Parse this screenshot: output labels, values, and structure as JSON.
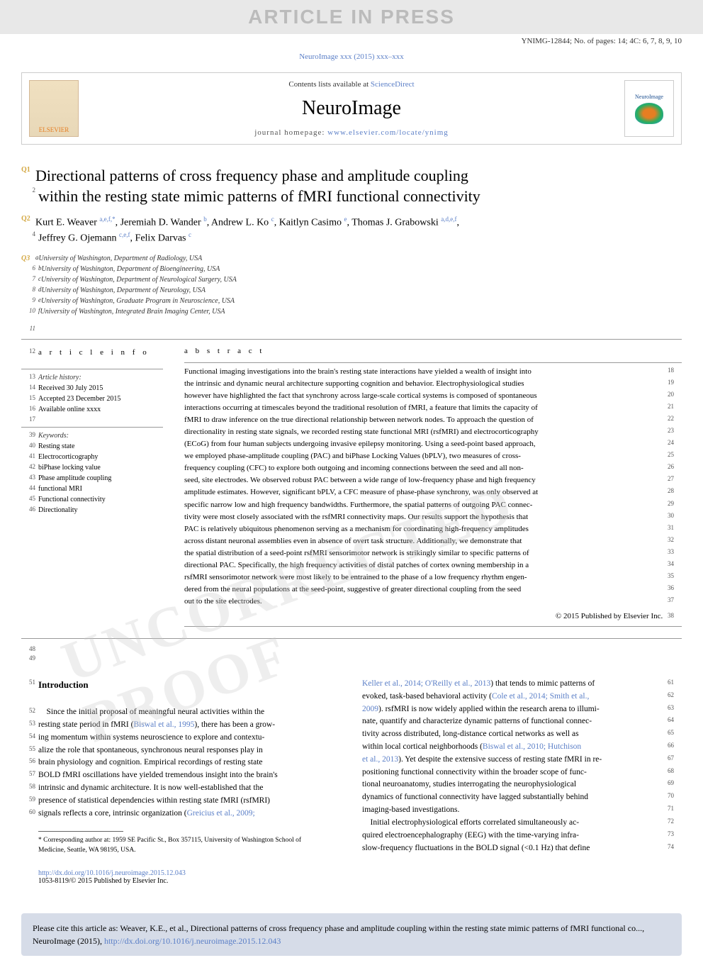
{
  "banner": {
    "text": "ARTICLE IN PRESS"
  },
  "header_meta": "YNIMG-12844; No. of pages: 14; 4C: 6, 7, 8, 9, 10",
  "journal_link_text": "NeuroImage xxx (2015) xxx–xxx",
  "journal_box": {
    "contents_text": "Contents lists available at ",
    "sd_text": "ScienceDirect",
    "journal_name": "NeuroImage",
    "homepage_label": "journal homepage: ",
    "homepage_url": "www.elsevier.com/locate/ynimg",
    "elsevier_label": "ELSEVIER",
    "neuroimage_label": "NeuroImage"
  },
  "title": {
    "q1": "Q1",
    "line1": "Directional patterns of cross frequency phase and amplitude coupling",
    "num2": "2",
    "line2": "within the resting state mimic patterns of fMRI functional connectivity"
  },
  "authors": {
    "q2": "Q2",
    "num4": "4",
    "text1": "Kurt E. Weaver ",
    "sup1": "a,e,f,",
    "star": "*",
    "text2": ", Jeremiah D. Wander ",
    "sup2": "b",
    "text3": ", Andrew L. Ko ",
    "sup3": "c",
    "text4": ", Kaitlyn Casimo ",
    "sup4": "e",
    "text5": ", Thomas J. Grabowski ",
    "sup5": "a,d,e,f",
    "text6": ",",
    "text7": "Jeffrey G. Ojemann ",
    "sup7": "c,e,f",
    "text8": ", Felix Darvas ",
    "sup8": "c"
  },
  "affiliations": [
    {
      "q": "Q3",
      "num": "",
      "sup": "a",
      "text": " University of Washington, Department of Radiology, USA"
    },
    {
      "q": "",
      "num": "6",
      "sup": "b",
      "text": " University of Washington, Department of Bioengineering, USA"
    },
    {
      "q": "",
      "num": "7",
      "sup": "c",
      "text": " University of Washington, Department of Neurological Surgery, USA"
    },
    {
      "q": "",
      "num": "8",
      "sup": "d",
      "text": " University of Washington, Department of Neurology, USA"
    },
    {
      "q": "",
      "num": "9",
      "sup": "e",
      "text": " University of Washington, Graduate Program in Neuroscience, USA"
    },
    {
      "q": "",
      "num": "10",
      "sup": "f",
      "text": " University of Washington, Integrated Brain Imaging Center, USA"
    }
  ],
  "blank_num": "11",
  "article_info": {
    "heading_num": "12",
    "heading": "a r t i c l e   i n f o",
    "history_num": "13",
    "history_label": "Article history:",
    "received_num": "14",
    "received": "Received 30 July 2015",
    "accepted_num": "15",
    "accepted": "Accepted 23 December 2015",
    "online_num": "16",
    "online": "Available online xxxx",
    "blank_num": "17",
    "keywords_num": "39",
    "keywords_label": "Keywords:",
    "keywords": [
      {
        "num": "40",
        "text": "Resting state"
      },
      {
        "num": "41",
        "text": "Electrocorticography"
      },
      {
        "num": "42",
        "text": "biPhase locking value"
      },
      {
        "num": "43",
        "text": "Phase amplitude coupling"
      },
      {
        "num": "44",
        "text": "functional MRI"
      },
      {
        "num": "45",
        "text": "Functional connectivity"
      },
      {
        "num": "46",
        "text": "Directionality"
      }
    ]
  },
  "abstract": {
    "heading": "a b s t r a c t",
    "lines": [
      {
        "num": "18",
        "text": "Functional imaging investigations into the brain's resting state interactions have yielded a wealth of insight into "
      },
      {
        "num": "19",
        "text": "the intrinsic and dynamic neural architecture supporting cognition and behavior. Electrophysiological studies "
      },
      {
        "num": "20",
        "text": "however have highlighted the fact that synchrony across large-scale cortical systems is composed of spontaneous "
      },
      {
        "num": "21",
        "text": "interactions occurring at timescales beyond the traditional resolution of fMRI, a feature that limits the capacity of "
      },
      {
        "num": "22",
        "text": "fMRI to draw inference on the true directional relationship between network nodes. To approach the question of "
      },
      {
        "num": "23",
        "text": "directionality in resting state signals, we recorded resting state functional MRI (rsfMRI) and electrocorticography "
      },
      {
        "num": "24",
        "text": "(ECoG) from four human subjects undergoing invasive epilepsy monitoring. Using a seed-point based approach, "
      },
      {
        "num": "25",
        "text": "we employed phase-amplitude coupling (PAC) and biPhase Locking Values (bPLV), two measures of cross- "
      },
      {
        "num": "26",
        "text": "frequency coupling (CFC) to explore both outgoing and incoming connections between the seed and all non- "
      },
      {
        "num": "27",
        "text": "seed, site electrodes. We observed robust PAC between a wide range of low-frequency phase and high frequency "
      },
      {
        "num": "28",
        "text": "amplitude estimates. However, significant bPLV, a CFC measure of phase-phase synchrony, was only observed at "
      },
      {
        "num": "29",
        "text": "specific narrow low and high frequency bandwidths. Furthermore, the spatial patterns of outgoing PAC connec- "
      },
      {
        "num": "30",
        "text": "tivity were most closely associated with the rsfMRI connectivity maps. Our results support the hypothesis that "
      },
      {
        "num": "31",
        "text": "PAC is relatively ubiquitous phenomenon serving as a mechanism for coordinating high-frequency amplitudes "
      },
      {
        "num": "32",
        "text": "across distant neuronal assemblies even in absence of overt task structure. Additionally, we demonstrate that "
      },
      {
        "num": "33",
        "text": "the spatial distribution of a seed-point rsfMRI sensorimotor network is strikingly similar to specific patterns of "
      },
      {
        "num": "34",
        "text": "directional PAC. Specifically, the high frequency activities of distal patches of cortex owning membership in a "
      },
      {
        "num": "35",
        "text": "rsfMRI sensorimotor network were most likely to be entrained to the phase of a low frequency rhythm engen- "
      },
      {
        "num": "36",
        "text": "dered from the neural populations at the seed-point, suggestive of greater directional coupling from the seed "
      },
      {
        "num": "37",
        "text": "out to the site electrodes."
      }
    ],
    "copyright_num": "38",
    "copyright": "© 2015 Published by Elsevier Inc."
  },
  "post_nums": {
    "n48": "48",
    "n49": "49"
  },
  "intro": {
    "heading_num": "51",
    "heading": "Introduction",
    "left_lines": [
      {
        "num": "52",
        "text": "Since the initial proposal of meaningful neural activities within the",
        "indent": true
      },
      {
        "num": "53",
        "text": "resting state period in fMRI (",
        "ref": "Biswal et al., 1995",
        "after": "), there has been a grow-"
      },
      {
        "num": "54",
        "text": "ing momentum within systems neuroscience to explore and contextu-"
      },
      {
        "num": "55",
        "text": "alize the role that spontaneous, synchronous neural responses play in"
      },
      {
        "num": "56",
        "text": "brain physiology and cognition. Empirical recordings of resting state"
      },
      {
        "num": "57",
        "text": "BOLD fMRI oscillations have yielded tremendous insight into the brain's"
      },
      {
        "num": "58",
        "text": "intrinsic and dynamic architecture. It is now well-established that the"
      },
      {
        "num": "59",
        "text": "presence of statistical dependencies within resting state fMRI (rsfMRI)"
      },
      {
        "num": "60",
        "text": "signals reflects a core, intrinsic organization (",
        "ref": "Greicius et al., 2009;",
        "after": ""
      }
    ],
    "right_lines": [
      {
        "num": "61",
        "ref": "Keller et al., 2014; O'Reilly et al., 2013",
        "text": ") that tends to mimic patterns of"
      },
      {
        "num": "62",
        "text": "evoked, task-based behavioral activity (",
        "ref": "Cole et al., 2014; Smith et al.,",
        "after": ""
      },
      {
        "num": "63",
        "ref": "2009",
        "text": "). rsfMRI is now widely applied within the research arena to illumi-"
      },
      {
        "num": "64",
        "text": "nate, quantify and characterize dynamic patterns of functional connec-"
      },
      {
        "num": "65",
        "text": "tivity across distributed, long-distance cortical networks as well as"
      },
      {
        "num": "66",
        "text": "within local cortical neighborhoods (",
        "ref": "Biswal et al., 2010; Hutchison",
        "after": ""
      },
      {
        "num": "67",
        "ref": "et al., 2013",
        "text": "). Yet despite the extensive success of resting state fMRI in re-"
      },
      {
        "num": "68",
        "text": "positioning functional connectivity within the broader scope of func-"
      },
      {
        "num": "69",
        "text": "tional neuroanatomy, studies interrogating the neurophysiological"
      },
      {
        "num": "70",
        "text": "dynamics of functional connectivity have lagged substantially behind"
      },
      {
        "num": "71",
        "text": "imaging-based investigations."
      },
      {
        "num": "72",
        "text": "Initial electrophysiological efforts correlated simultaneously ac-",
        "indent": true
      },
      {
        "num": "73",
        "text": "quired electroencephalography (EEG) with the time-varying infra-"
      },
      {
        "num": "74",
        "text": "slow-frequency fluctuations in the BOLD signal (<0.1 Hz) that define"
      }
    ]
  },
  "footnote": {
    "star": "*",
    "text": " Corresponding author at: 1959 SE Pacific St., Box 357115, University of Washington School of Medicine, Seattle, WA 98195, USA."
  },
  "doi": {
    "url": "http://dx.doi.org/10.1016/j.neuroimage.2015.12.043",
    "issn": "1053-8119/© 2015 Published by Elsevier Inc."
  },
  "cite_box": {
    "text": "Please cite this article as: Weaver, K.E., et al., Directional patterns of cross frequency phase and amplitude coupling within the resting state mimic patterns of fMRI functional co..., NeuroImage (2015), ",
    "url": "http://dx.doi.org/10.1016/j.neuroimage.2015.12.043"
  },
  "watermark": "UNCORRECTED PROOF",
  "colors": {
    "link": "#5b7fc7",
    "q_marker": "#d4a843",
    "banner_bg": "#e8e8e8",
    "banner_fg": "#bbbbbb",
    "cite_bg": "#d6dce8"
  }
}
